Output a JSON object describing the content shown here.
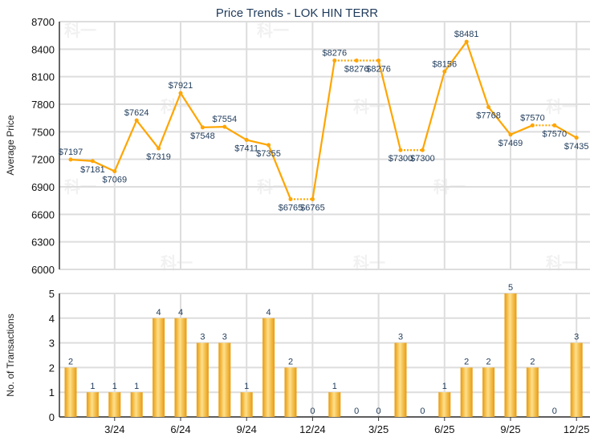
{
  "chart_data": [
    {
      "type": "line",
      "title": "Price Trends - LOK HIN TERR",
      "xlabel": "",
      "ylabel": "Average Price",
      "ylim": [
        6000,
        8700
      ],
      "yticks": [
        6000,
        6300,
        6600,
        6900,
        7200,
        7500,
        7800,
        8100,
        8400,
        8700
      ],
      "grid": true,
      "months": [
        "1/24",
        "2/24",
        "3/24",
        "4/24",
        "5/24",
        "6/24",
        "7/24",
        "8/24",
        "9/24",
        "10/24",
        "11/24",
        "12/24",
        "1/25",
        "2/25",
        "3/25",
        "4/25",
        "5/25",
        "6/25",
        "7/25",
        "8/25",
        "9/25",
        "10/25",
        "11/25",
        "12/25"
      ],
      "values": [
        7197,
        7181,
        7069,
        7624,
        7319,
        7921,
        7548,
        7554,
        7411,
        7355,
        6765,
        6765,
        8276,
        8276,
        8276,
        7300,
        7300,
        8156,
        8481,
        7768,
        7469,
        7570,
        7570,
        7435
      ],
      "labels": [
        "$7197",
        "$7181",
        "$7069",
        "$7624",
        "$7319",
        "$7921",
        "$7548",
        "$7554",
        "$7411",
        "$7355",
        "$6765",
        "$6765",
        "$8276",
        "$8276",
        "$8276",
        "$7300",
        "$7300",
        "$8156",
        "$8481",
        "$7768",
        "$7469",
        "$7570",
        "$7570",
        "$7435"
      ],
      "color": "#FFA500"
    },
    {
      "type": "bar",
      "ylabel": "No. of Transactions",
      "ylim": [
        0,
        5
      ],
      "yticks": [
        0,
        1,
        2,
        3,
        4,
        5
      ],
      "grid": true,
      "xticklabels": [
        "3/24",
        "6/24",
        "9/24",
        "12/24",
        "3/25",
        "6/25",
        "9/25",
        "12/25"
      ],
      "xtick_month_index": [
        2,
        5,
        8,
        11,
        14,
        17,
        20,
        23
      ],
      "values": [
        2,
        1,
        1,
        1,
        4,
        4,
        3,
        3,
        1,
        4,
        2,
        0,
        1,
        0,
        0,
        3,
        0,
        1,
        2,
        2,
        5,
        2,
        0,
        3
      ],
      "color": "#F5B82E"
    }
  ],
  "watermark": "科一",
  "colors": {
    "title": "#1F3B5B",
    "label": "#1F3B5B",
    "grid": "#DDDDDD"
  }
}
